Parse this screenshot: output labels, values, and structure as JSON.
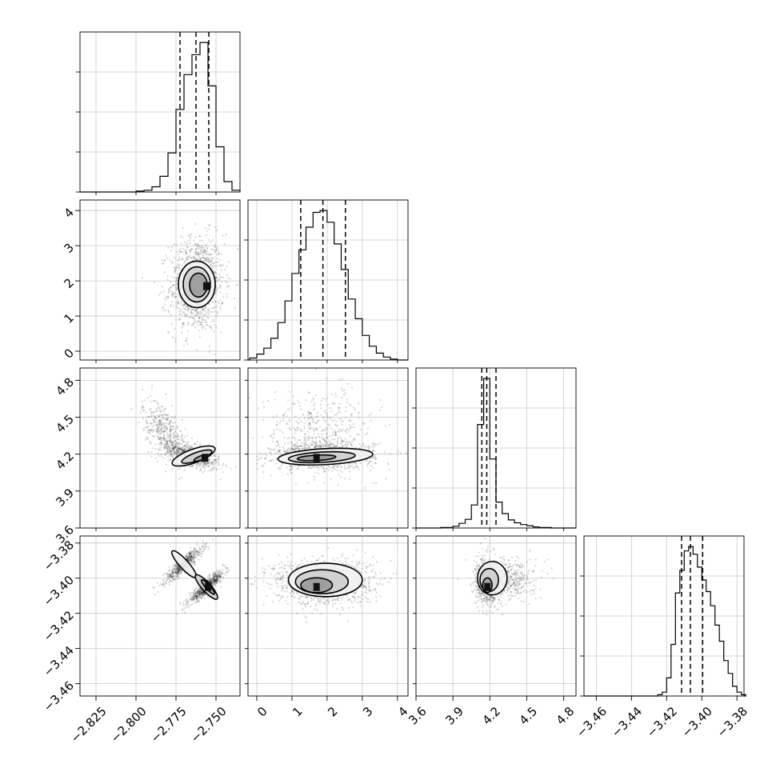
{
  "chart_data": {
    "type": "corner",
    "parameters": [
      {
        "range": [
          -2.835,
          -2.735
        ],
        "ticks": [
          -2.825,
          -2.8,
          -2.775,
          -2.75
        ],
        "tick_labels": [
          "−2.825",
          "−2.800",
          "−2.775",
          "−2.750"
        ]
      },
      {
        "range": [
          -0.25,
          4.3
        ],
        "ticks": [
          0,
          1,
          2,
          3,
          4
        ],
        "tick_labels": [
          "0",
          "1",
          "2",
          "3",
          "4"
        ]
      },
      {
        "range": [
          3.6,
          4.9
        ],
        "ticks": [
          3.6,
          3.9,
          4.2,
          4.5,
          4.8
        ],
        "tick_labels": [
          "3.6",
          "3.9",
          "4.2",
          "4.5",
          "4.8"
        ]
      },
      {
        "range": [
          -3.467,
          -3.376
        ],
        "ticks": [
          -3.46,
          -3.44,
          -3.42,
          -3.4,
          -3.38
        ],
        "tick_labels": [
          "−3.46",
          "−3.44",
          "−3.42",
          "−3.40",
          "−3.38"
        ]
      }
    ],
    "histograms": [
      {
        "param": 0,
        "quantiles": [
          -2.7725,
          -2.7625,
          -2.7545
        ],
        "bin_edges": [
          -2.8,
          -2.795,
          -2.79,
          -2.785,
          -2.78,
          -2.775,
          -2.77,
          -2.765,
          -2.76,
          -2.755,
          -2.75,
          -2.745,
          -2.74,
          -2.735
        ],
        "counts": [
          1,
          2,
          6,
          18,
          45,
          95,
          135,
          158,
          172,
          122,
          52,
          12,
          2
        ]
      },
      {
        "param": 1,
        "quantiles": [
          1.25,
          1.88,
          2.52
        ],
        "bin_edges": [
          -0.2,
          0,
          0.2,
          0.4,
          0.6,
          0.8,
          1,
          1.2,
          1.4,
          1.6,
          1.8,
          2,
          2.2,
          2.4,
          2.6,
          2.8,
          3,
          3.2,
          3.4,
          3.6,
          3.8,
          4,
          4.2
        ],
        "counts": [
          2,
          6,
          12,
          22,
          38,
          60,
          88,
          112,
          135,
          150,
          152,
          140,
          118,
          92,
          62,
          42,
          25,
          14,
          7,
          3,
          1,
          0
        ]
      },
      {
        "param": 2,
        "quantiles": [
          4.135,
          4.175,
          4.25
        ],
        "bin_edges": [
          3.8,
          3.85,
          3.9,
          3.95,
          4,
          4.05,
          4.1,
          4.15,
          4.2,
          4.25,
          4.3,
          4.35,
          4.4,
          4.45,
          4.5,
          4.55,
          4.6,
          4.65,
          4.7,
          4.75,
          4.8
        ],
        "counts": [
          1,
          1,
          3,
          8,
          15,
          40,
          180,
          260,
          120,
          45,
          25,
          14,
          9,
          6,
          4,
          2,
          1,
          1,
          0,
          0
        ]
      },
      {
        "param": 3,
        "quantiles": [
          -3.4115,
          -3.4065,
          -3.3995
        ],
        "bin_edges": [
          -3.425,
          -3.4225,
          -3.42,
          -3.4175,
          -3.415,
          -3.4125,
          -3.41,
          -3.4075,
          -3.405,
          -3.4025,
          -3.4,
          -3.3975,
          -3.395,
          -3.3925,
          -3.39,
          -3.3875,
          -3.385,
          -3.3825,
          -3.38,
          -3.3775,
          -3.375
        ],
        "counts": [
          2,
          6,
          28,
          80,
          160,
          195,
          225,
          232,
          220,
          200,
          180,
          162,
          140,
          110,
          85,
          55,
          35,
          15,
          6,
          2
        ]
      }
    ],
    "panels": [
      {
        "x": 0,
        "y": 1,
        "blobs": [
          {
            "cx": -2.762,
            "cy": 1.9,
            "sx": 0.0085,
            "sy": 0.68,
            "rho": 0.05,
            "n": 1100
          }
        ],
        "contours": [
          [
            -2.762,
            1.9,
            0.0115,
            0.66
          ],
          [
            -2.762,
            1.9,
            0.0085,
            0.5
          ],
          [
            -2.761,
            1.88,
            0.0055,
            0.34
          ]
        ],
        "peak": [
          -2.756,
          1.85
        ]
      },
      {
        "x": 0,
        "y": 2,
        "blobs": [
          {
            "cx": -2.765,
            "cy": 4.19,
            "sx": 0.0085,
            "sy": 0.055,
            "rho": -0.65,
            "n": 600
          },
          {
            "cx": -2.782,
            "cy": 4.38,
            "sx": 0.007,
            "sy": 0.13,
            "rho": -0.55,
            "n": 400
          }
        ],
        "contours": [
          [
            -2.764,
            4.185,
            0.0142,
            0.055,
            -20
          ],
          [
            -2.762,
            4.18,
            0.01,
            0.033,
            -20
          ],
          [
            -2.759,
            4.17,
            0.005,
            0.018,
            -20
          ]
        ],
        "peak": [
          -2.757,
          4.17
        ]
      },
      {
        "x": 0,
        "y": 3,
        "blobs": [
          {
            "cx": -2.77,
            "cy": -3.392,
            "sx": 0.006,
            "sy": 0.005,
            "rho": 0.9,
            "n": 550
          },
          {
            "cx": -2.756,
            "cy": -3.405,
            "sx": 0.0055,
            "sy": 0.0045,
            "rho": 0.9,
            "n": 650
          }
        ],
        "contours": [
          [
            -2.77,
            -3.392,
            0.011,
            0.0025,
            48
          ],
          [
            -2.756,
            -3.405,
            0.01,
            0.0025,
            48
          ],
          [
            -2.755,
            -3.405,
            0.006,
            0.0013,
            48
          ]
        ],
        "peak": [
          -2.755,
          -3.405
        ]
      },
      {
        "x": 1,
        "y": 2,
        "blobs": [
          {
            "cx": 1.9,
            "cy": 4.19,
            "sx": 0.72,
            "sy": 0.055,
            "rho": 0,
            "n": 900
          },
          {
            "cx": 1.8,
            "cy": 4.4,
            "sx": 0.8,
            "sy": 0.16,
            "rho": 0,
            "n": 450
          }
        ],
        "contours": [
          [
            1.95,
            4.18,
            1.35,
            0.065,
            -3
          ],
          [
            1.85,
            4.175,
            0.95,
            0.042,
            -3
          ],
          [
            1.7,
            4.17,
            0.55,
            0.022,
            -3
          ]
        ],
        "peak": [
          1.7,
          4.17
        ]
      },
      {
        "x": 1,
        "y": 3,
        "blobs": [
          {
            "cx": 1.9,
            "cy": -3.402,
            "sx": 0.7,
            "sy": 0.0065,
            "rho": 0,
            "n": 1200
          }
        ],
        "contours": [
          [
            1.95,
            -3.401,
            1.05,
            0.0095
          ],
          [
            1.85,
            -3.402,
            0.75,
            0.0068
          ],
          [
            1.7,
            -3.404,
            0.45,
            0.0042
          ]
        ],
        "peak": [
          1.7,
          -3.405
        ]
      },
      {
        "x": 2,
        "y": 3,
        "blobs": [
          {
            "cx": 4.18,
            "cy": -3.402,
            "sx": 0.045,
            "sy": 0.0065,
            "rho": 0,
            "n": 700
          },
          {
            "cx": 4.33,
            "cy": -3.401,
            "sx": 0.12,
            "sy": 0.006,
            "rho": 0,
            "n": 450
          }
        ],
        "contours": [
          [
            4.22,
            -3.4,
            0.12,
            0.0095
          ],
          [
            4.195,
            -3.401,
            0.075,
            0.0065
          ],
          [
            4.18,
            -3.404,
            0.038,
            0.0042
          ]
        ],
        "peak": [
          4.18,
          -3.405
        ]
      }
    ]
  }
}
